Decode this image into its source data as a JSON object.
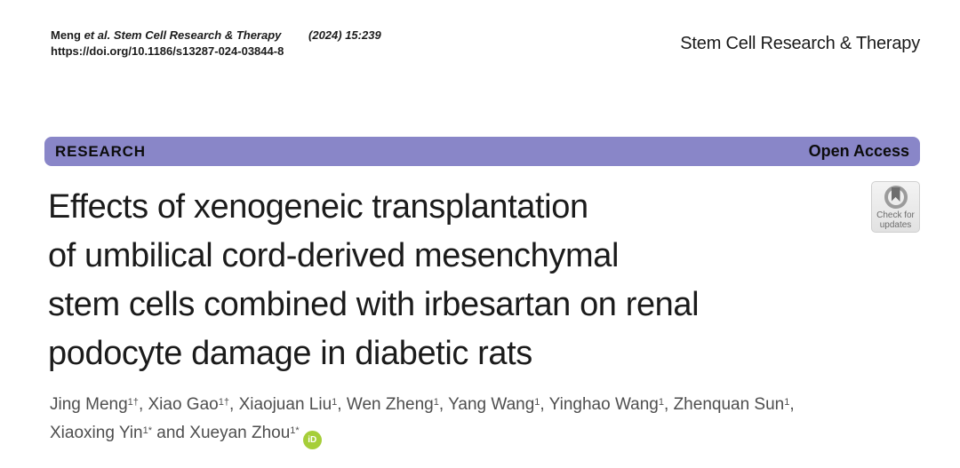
{
  "header": {
    "citation": {
      "author": "Meng",
      "etal_journal": "et al. Stem Cell Research & Therapy",
      "volume_info": "(2024) 15:239",
      "doi": "https://doi.org/10.1186/s13287-024-03844-8"
    },
    "journal_name": "Stem Cell Research & Therapy"
  },
  "banner": {
    "section_label": "RESEARCH",
    "access_label": "Open Access",
    "background_color": "#8986c8"
  },
  "update_badge": {
    "line1": "Check for",
    "line2": "updates"
  },
  "article": {
    "title_lines": [
      "Effects of xenogeneic transplantation",
      "of umbilical cord-derived mesenchymal",
      "stem cells combined with irbesartan on renal",
      "podocyte damage in diabetic rats"
    ],
    "author_lines": [
      [
        {
          "name": "Jing Meng",
          "sup": "1†",
          "sep": ", "
        },
        {
          "name": "Xiao Gao",
          "sup": "1†",
          "sep": ", "
        },
        {
          "name": "Xiaojuan Liu",
          "sup": "1",
          "sep": ", "
        },
        {
          "name": "Wen Zheng",
          "sup": "1",
          "sep": ", "
        },
        {
          "name": "Yang Wang",
          "sup": "1",
          "sep": ", "
        },
        {
          "name": "Yinghao Wang",
          "sup": "1",
          "sep": ", "
        },
        {
          "name": "Zhenquan Sun",
          "sup": "1",
          "sep": ","
        }
      ],
      [
        {
          "name": "Xiaoxing Yin",
          "sup": "1*",
          "sep": " and "
        },
        {
          "name": "Xueyan Zhou",
          "sup": "1*",
          "sep": ""
        }
      ]
    ],
    "orcid_label": "iD",
    "orcid_color": "#a6ce39"
  }
}
